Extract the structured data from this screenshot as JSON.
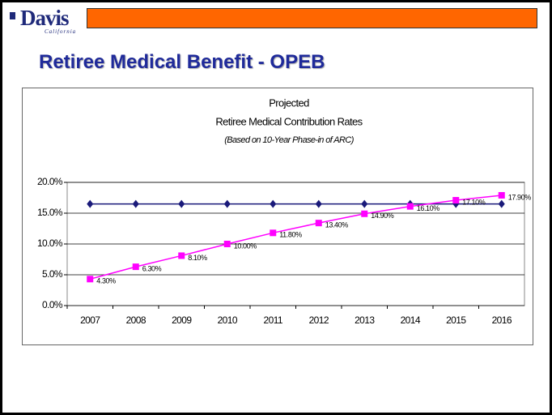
{
  "slide": {
    "logo": "Davis",
    "logo_sub": "California",
    "title": "Retiree Medical Benefit - OPEB"
  },
  "chart_data": {
    "type": "line",
    "title": "Projected",
    "subtitle": "Retiree Medical Contribution Rates",
    "note": "(Based on 10-Year Phase-in of ARC)",
    "categories": [
      "2007",
      "2008",
      "2009",
      "2010",
      "2011",
      "2012",
      "2013",
      "2014",
      "2015",
      "2016"
    ],
    "series": [
      {
        "color": "#1a1a7a",
        "marker": "diamond",
        "values": [
          16.5,
          16.5,
          16.5,
          16.5,
          16.5,
          16.5,
          16.5,
          16.5,
          16.5,
          16.5
        ]
      },
      {
        "color": "#ff00ff",
        "marker": "square",
        "values": [
          4.3,
          6.3,
          8.1,
          10.0,
          11.8,
          13.4,
          14.9,
          16.1,
          17.1,
          17.9
        ],
        "value_labels": [
          "4.30%",
          "6.30%",
          "8.10%",
          "10.00%",
          "11.80%",
          "13.40%",
          "14.90%",
          "16.10%",
          "17.10%",
          "17.90%"
        ]
      }
    ],
    "ylim": [
      0,
      20
    ],
    "yticks": [
      {
        "value": 0,
        "label": "0.0%"
      },
      {
        "value": 5,
        "label": "5.0%"
      },
      {
        "value": 10,
        "label": "10.0%"
      },
      {
        "value": 15,
        "label": "15.0%"
      },
      {
        "value": 20,
        "label": "20.0%"
      }
    ],
    "grid": true
  }
}
